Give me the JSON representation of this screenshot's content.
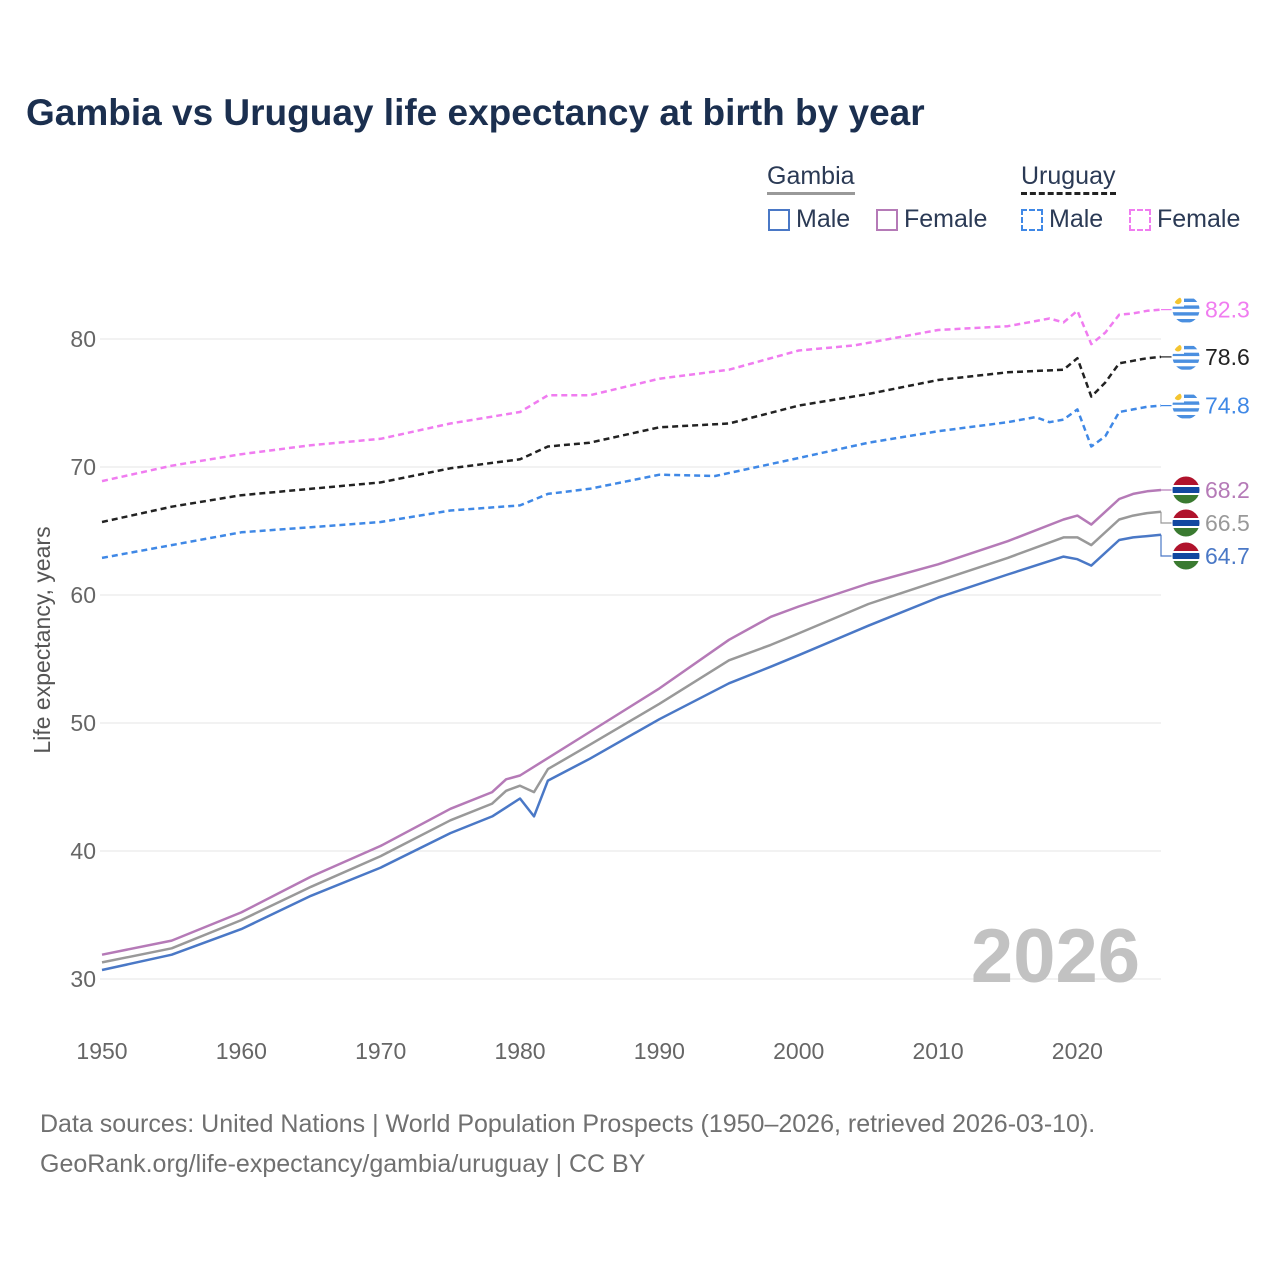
{
  "title": "Gambia vs Uruguay life expectancy at birth by year",
  "legend": {
    "groups": [
      {
        "name": "Gambia",
        "line_color": "#999999",
        "dashed": false
      },
      {
        "name": "Uruguay",
        "line_color": "#222222",
        "dashed": true
      }
    ],
    "items": [
      {
        "label": "Male",
        "color": "#4a78c6",
        "dashed": false
      },
      {
        "label": "Female",
        "color": "#b57ab7",
        "dashed": false
      },
      {
        "label": "Male",
        "color": "#3f88e6",
        "dashed": true
      },
      {
        "label": "Female",
        "color": "#f07cf0",
        "dashed": true
      }
    ]
  },
  "source": {
    "line1": "Data sources: United Nations | World Population Prospects (1950–2026, retrieved 2026-03-10).",
    "line2": "GeoRank.org/life-expectancy/gambia/uruguay | CC BY"
  },
  "chart_data": {
    "type": "line",
    "title": "Gambia vs Uruguay life expectancy at birth by year",
    "xlabel": "",
    "ylabel": "Life expectancy, years",
    "xlim": [
      1950,
      2026
    ],
    "ylim": [
      30,
      85
    ],
    "x_ticks": [
      "1950",
      "1960",
      "1970",
      "1980",
      "1990",
      "2000",
      "2010",
      "2020"
    ],
    "y_ticks": [
      "30",
      "40",
      "50",
      "60",
      "70",
      "80"
    ],
    "grid": true,
    "year_watermark": "2026",
    "series": [
      {
        "name": "Uruguay Female",
        "color": "#f07cf0",
        "dashed": true,
        "end_label": "82.3",
        "flag": "uruguay",
        "points": [
          [
            1950,
            68.9
          ],
          [
            1955,
            70.1
          ],
          [
            1960,
            71.0
          ],
          [
            1965,
            71.7
          ],
          [
            1970,
            72.2
          ],
          [
            1975,
            73.4
          ],
          [
            1980,
            74.3
          ],
          [
            1982,
            75.6
          ],
          [
            1985,
            75.6
          ],
          [
            1990,
            76.9
          ],
          [
            1995,
            77.6
          ],
          [
            2000,
            79.1
          ],
          [
            2004,
            79.5
          ],
          [
            2010,
            80.7
          ],
          [
            2015,
            81.0
          ],
          [
            2018,
            81.6
          ],
          [
            2019,
            81.3
          ],
          [
            2020,
            82.2
          ],
          [
            2021,
            79.6
          ],
          [
            2022,
            80.5
          ],
          [
            2023,
            81.9
          ],
          [
            2024,
            82.0
          ],
          [
            2025,
            82.2
          ],
          [
            2026,
            82.3
          ]
        ]
      },
      {
        "name": "Uruguay Both",
        "color": "#222222",
        "dashed": true,
        "end_label": "78.6",
        "flag": "uruguay",
        "points": [
          [
            1950,
            65.7
          ],
          [
            1955,
            66.9
          ],
          [
            1960,
            67.8
          ],
          [
            1965,
            68.3
          ],
          [
            1970,
            68.8
          ],
          [
            1975,
            69.9
          ],
          [
            1980,
            70.6
          ],
          [
            1982,
            71.6
          ],
          [
            1985,
            71.9
          ],
          [
            1990,
            73.1
          ],
          [
            1995,
            73.4
          ],
          [
            2000,
            74.8
          ],
          [
            2005,
            75.7
          ],
          [
            2010,
            76.8
          ],
          [
            2015,
            77.4
          ],
          [
            2019,
            77.6
          ],
          [
            2020,
            78.5
          ],
          [
            2021,
            75.5
          ],
          [
            2022,
            76.6
          ],
          [
            2023,
            78.1
          ],
          [
            2024,
            78.3
          ],
          [
            2025,
            78.5
          ],
          [
            2026,
            78.6
          ]
        ]
      },
      {
        "name": "Uruguay Male",
        "color": "#3f88e6",
        "dashed": true,
        "end_label": "74.8",
        "flag": "uruguay",
        "points": [
          [
            1950,
            62.9
          ],
          [
            1955,
            63.9
          ],
          [
            1960,
            64.9
          ],
          [
            1965,
            65.3
          ],
          [
            1970,
            65.7
          ],
          [
            1975,
            66.6
          ],
          [
            1980,
            67.0
          ],
          [
            1982,
            67.9
          ],
          [
            1985,
            68.3
          ],
          [
            1990,
            69.4
          ],
          [
            1994,
            69.3
          ],
          [
            2000,
            70.7
          ],
          [
            2005,
            71.9
          ],
          [
            2010,
            72.8
          ],
          [
            2015,
            73.5
          ],
          [
            2017,
            73.9
          ],
          [
            2018,
            73.5
          ],
          [
            2019,
            73.7
          ],
          [
            2020,
            74.5
          ],
          [
            2021,
            71.6
          ],
          [
            2022,
            72.4
          ],
          [
            2023,
            74.3
          ],
          [
            2024,
            74.5
          ],
          [
            2025,
            74.7
          ],
          [
            2026,
            74.8
          ]
        ]
      },
      {
        "name": "Gambia Female",
        "color": "#b57ab7",
        "dashed": false,
        "end_label": "68.2",
        "flag": "gambia",
        "points": [
          [
            1950,
            31.9
          ],
          [
            1955,
            33.0
          ],
          [
            1960,
            35.2
          ],
          [
            1965,
            38.0
          ],
          [
            1970,
            40.4
          ],
          [
            1975,
            43.3
          ],
          [
            1978,
            44.6
          ],
          [
            1979,
            45.6
          ],
          [
            1980,
            45.9
          ],
          [
            1985,
            49.3
          ],
          [
            1990,
            52.7
          ],
          [
            1995,
            56.5
          ],
          [
            1998,
            58.3
          ],
          [
            2000,
            59.1
          ],
          [
            2005,
            60.9
          ],
          [
            2010,
            62.4
          ],
          [
            2015,
            64.2
          ],
          [
            2019,
            65.9
          ],
          [
            2020,
            66.2
          ],
          [
            2021,
            65.5
          ],
          [
            2023,
            67.5
          ],
          [
            2024,
            67.9
          ],
          [
            2025,
            68.1
          ],
          [
            2026,
            68.2
          ]
        ]
      },
      {
        "name": "Gambia Both",
        "color": "#999999",
        "dashed": false,
        "end_label": "66.5",
        "flag": "gambia",
        "points": [
          [
            1950,
            31.3
          ],
          [
            1955,
            32.4
          ],
          [
            1960,
            34.6
          ],
          [
            1965,
            37.2
          ],
          [
            1970,
            39.6
          ],
          [
            1975,
            42.4
          ],
          [
            1978,
            43.7
          ],
          [
            1979,
            44.7
          ],
          [
            1980,
            45.1
          ],
          [
            1981,
            44.6
          ],
          [
            1982,
            46.4
          ],
          [
            1985,
            48.3
          ],
          [
            1990,
            51.5
          ],
          [
            1995,
            54.9
          ],
          [
            1998,
            56.1
          ],
          [
            2000,
            57.0
          ],
          [
            2005,
            59.3
          ],
          [
            2010,
            61.1
          ],
          [
            2015,
            62.9
          ],
          [
            2019,
            64.5
          ],
          [
            2020,
            64.5
          ],
          [
            2021,
            63.9
          ],
          [
            2023,
            65.9
          ],
          [
            2024,
            66.2
          ],
          [
            2025,
            66.4
          ],
          [
            2026,
            66.5
          ]
        ]
      },
      {
        "name": "Gambia Male",
        "color": "#4a78c6",
        "dashed": false,
        "end_label": "64.7",
        "flag": "gambia",
        "points": [
          [
            1950,
            30.7
          ],
          [
            1955,
            31.9
          ],
          [
            1960,
            33.9
          ],
          [
            1965,
            36.5
          ],
          [
            1970,
            38.7
          ],
          [
            1975,
            41.4
          ],
          [
            1978,
            42.7
          ],
          [
            1980,
            44.1
          ],
          [
            1981,
            42.7
          ],
          [
            1982,
            45.5
          ],
          [
            1985,
            47.2
          ],
          [
            1990,
            50.3
          ],
          [
            1995,
            53.1
          ],
          [
            1998,
            54.4
          ],
          [
            2000,
            55.3
          ],
          [
            2005,
            57.6
          ],
          [
            2010,
            59.8
          ],
          [
            2015,
            61.6
          ],
          [
            2019,
            63.0
          ],
          [
            2020,
            62.8
          ],
          [
            2021,
            62.3
          ],
          [
            2023,
            64.3
          ],
          [
            2024,
            64.5
          ],
          [
            2025,
            64.6
          ],
          [
            2026,
            64.7
          ]
        ]
      }
    ]
  }
}
